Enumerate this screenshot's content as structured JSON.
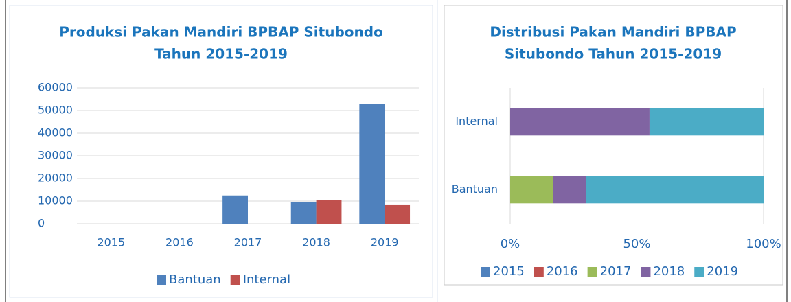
{
  "chart_data": [
    {
      "type": "bar",
      "orientation": "vertical",
      "stacked": false,
      "title": [
        "Produksi Pakan Mandiri BPBAP Situbondo",
        "Tahun 2015-2019"
      ],
      "categories": [
        "2015",
        "2016",
        "2017",
        "2018",
        "2019"
      ],
      "series": [
        {
          "name": "Bantuan",
          "color": "#4f81bd",
          "values": [
            0,
            0,
            12500,
            9500,
            53000
          ]
        },
        {
          "name": "Internal",
          "color": "#c0504d",
          "values": [
            0,
            0,
            0,
            10500,
            8500
          ]
        }
      ],
      "ylim": [
        0,
        60000
      ],
      "yticks": [
        0,
        10000,
        20000,
        30000,
        40000,
        50000,
        60000
      ],
      "grid": true,
      "legend": "bottom"
    },
    {
      "type": "bar",
      "orientation": "horizontal",
      "stacked": true,
      "title": [
        "Distribusi Pakan Mandiri BPBAP",
        "Situbondo Tahun 2015-2019"
      ],
      "categories": [
        "Internal",
        "Bantuan"
      ],
      "series": [
        {
          "name": "2015",
          "color": "#4f81bd",
          "values": [
            0,
            0
          ]
        },
        {
          "name": "2016",
          "color": "#c0504d",
          "values": [
            0,
            0
          ]
        },
        {
          "name": "2017",
          "color": "#9bbb59",
          "values": [
            0,
            17
          ]
        },
        {
          "name": "2018",
          "color": "#8064a2",
          "values": [
            55,
            13
          ]
        },
        {
          "name": "2019",
          "color": "#4bacc6",
          "values": [
            45,
            70
          ]
        }
      ],
      "xlim": [
        0,
        100
      ],
      "xticks": [
        {
          "value": 0,
          "label": "0%"
        },
        {
          "value": 50,
          "label": "50%"
        },
        {
          "value": 100,
          "label": "100%"
        }
      ],
      "grid": true,
      "legend": "bottom"
    }
  ]
}
